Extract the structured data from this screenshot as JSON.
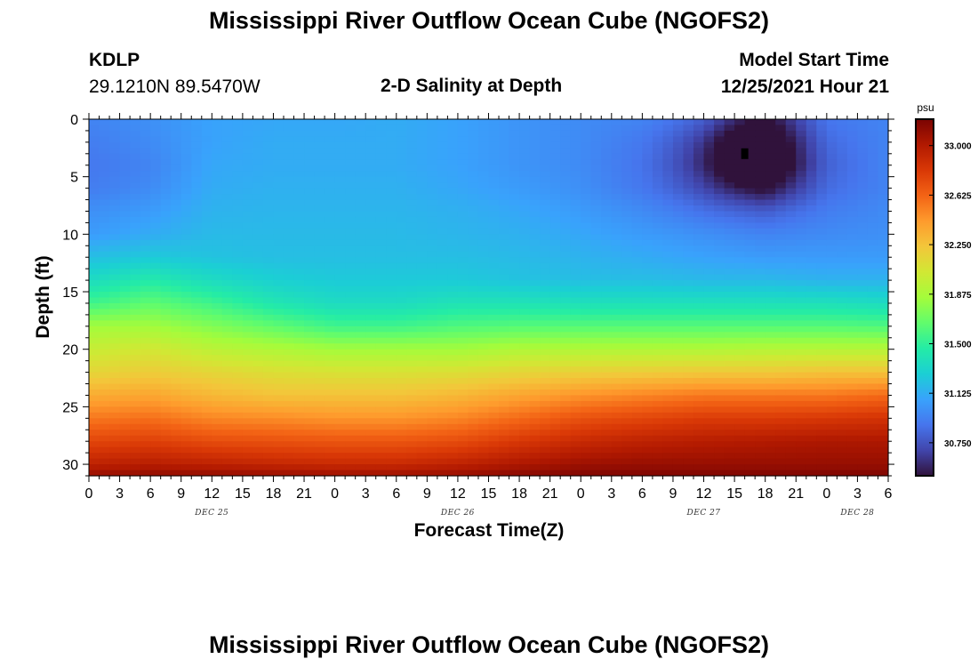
{
  "header": {
    "title": "Mississippi River Outflow Ocean Cube (NGOFS2)",
    "station_id": "KDLP",
    "coordinates": "29.1210N  89.5470W",
    "subtitle": "2-D Salinity at Depth",
    "model_start_label": "Model Start Time",
    "model_start_value": "12/25/2021 Hour 21"
  },
  "footer": {
    "title_repeat": "Mississippi River Outflow Ocean Cube (NGOFS2)"
  },
  "chart_data": {
    "type": "heatmap",
    "title": "2-D Salinity at Depth",
    "xlabel": "Forecast Time(Z)",
    "ylabel": "Depth (ft)",
    "xlim": [
      0,
      78
    ],
    "ylim": [
      0,
      31
    ],
    "y_inverted": true,
    "x_ticks": [
      "0",
      "3",
      "6",
      "9",
      "12",
      "15",
      "18",
      "21",
      "0",
      "3",
      "6",
      "9",
      "12",
      "15",
      "18",
      "21",
      "0",
      "3",
      "6",
      "9",
      "12",
      "15",
      "18",
      "21",
      "0",
      "3",
      "6"
    ],
    "day_labels": [
      {
        "label": "DEC 25",
        "hour": 12
      },
      {
        "label": "DEC 26",
        "hour": 36
      },
      {
        "label": "DEC 27",
        "hour": 60
      },
      {
        "label": "DEC 28",
        "hour": 75
      }
    ],
    "y_ticks": [
      0,
      5,
      10,
      15,
      20,
      25,
      30
    ],
    "colorbar": {
      "unit": "psu",
      "min": 30.5,
      "max": 33.2,
      "tick_values": [
        "33.000",
        "32.625",
        "32.250",
        "31.875",
        "31.500",
        "31.125",
        "30.750"
      ],
      "colors": [
        "#30123b",
        "#4145ab",
        "#4675ed",
        "#39a2fc",
        "#1bcfd4",
        "#24eca6",
        "#61fc6c",
        "#a4fc3b",
        "#d1e834",
        "#f3c63a",
        "#fe9b2d",
        "#f36315",
        "#d93806",
        "#b11901",
        "#7a0402"
      ]
    },
    "z_grid": {
      "description": "salinity (psu); rows = depth (ft) 0..31, cols = forecast hour 0..78",
      "depths": [
        0,
        2,
        4,
        6,
        8,
        10,
        12,
        14,
        16,
        18,
        20,
        22,
        24,
        26,
        28,
        30,
        31
      ],
      "hours": [
        0,
        6,
        12,
        18,
        24,
        30,
        36,
        42,
        48,
        54,
        60,
        66,
        72,
        78
      ],
      "values": [
        [
          30.95,
          31.0,
          31.08,
          31.1,
          31.1,
          31.12,
          31.08,
          31.02,
          30.98,
          30.95,
          30.85,
          30.55,
          30.9,
          30.95
        ],
        [
          30.92,
          30.98,
          31.08,
          31.12,
          31.12,
          31.12,
          31.08,
          31.02,
          30.98,
          30.9,
          30.75,
          30.45,
          30.85,
          30.95
        ],
        [
          30.9,
          30.95,
          31.1,
          31.12,
          31.12,
          31.12,
          31.08,
          31.02,
          30.98,
          30.88,
          30.7,
          30.4,
          30.82,
          30.95
        ],
        [
          30.92,
          30.98,
          31.12,
          31.14,
          31.14,
          31.14,
          31.1,
          31.05,
          31.0,
          30.9,
          30.75,
          30.55,
          30.85,
          30.95
        ],
        [
          31.0,
          31.05,
          31.15,
          31.16,
          31.16,
          31.16,
          31.14,
          31.1,
          31.05,
          30.98,
          30.88,
          30.8,
          30.92,
          30.98
        ],
        [
          31.05,
          31.12,
          31.18,
          31.18,
          31.18,
          31.18,
          31.16,
          31.14,
          31.1,
          31.05,
          31.0,
          30.95,
          30.98,
          31.0
        ],
        [
          31.2,
          31.25,
          31.22,
          31.2,
          31.2,
          31.2,
          31.2,
          31.18,
          31.15,
          31.12,
          31.08,
          31.05,
          31.05,
          31.05
        ],
        [
          31.35,
          31.45,
          31.35,
          31.28,
          31.25,
          31.25,
          31.25,
          31.22,
          31.2,
          31.2,
          31.18,
          31.18,
          31.15,
          31.15
        ],
        [
          31.55,
          31.65,
          31.55,
          31.42,
          31.35,
          31.35,
          31.4,
          31.4,
          31.38,
          31.38,
          31.38,
          31.38,
          31.38,
          31.35
        ],
        [
          31.85,
          31.85,
          31.75,
          31.65,
          31.55,
          31.55,
          31.6,
          31.62,
          31.62,
          31.62,
          31.62,
          31.62,
          31.62,
          31.6
        ],
        [
          32.0,
          32.05,
          31.95,
          31.9,
          31.85,
          31.85,
          31.85,
          31.9,
          31.9,
          31.9,
          31.9,
          31.92,
          31.92,
          31.92
        ],
        [
          32.15,
          32.2,
          32.15,
          32.1,
          32.08,
          32.08,
          32.1,
          32.15,
          32.18,
          32.2,
          32.22,
          32.22,
          32.25,
          32.25
        ],
        [
          32.35,
          32.38,
          32.3,
          32.25,
          32.25,
          32.25,
          32.3,
          32.38,
          32.45,
          32.5,
          32.55,
          32.55,
          32.55,
          32.6
        ],
        [
          32.55,
          32.58,
          32.5,
          32.48,
          32.45,
          32.45,
          32.5,
          32.6,
          32.7,
          32.75,
          32.8,
          32.8,
          32.82,
          32.85
        ],
        [
          32.75,
          32.78,
          32.72,
          32.7,
          32.68,
          32.68,
          32.72,
          32.82,
          32.9,
          32.95,
          32.98,
          33.0,
          33.02,
          33.02
        ],
        [
          32.95,
          32.98,
          32.95,
          32.92,
          32.9,
          32.9,
          32.95,
          33.02,
          33.08,
          33.1,
          33.1,
          33.1,
          33.1,
          33.1
        ],
        [
          33.1,
          33.12,
          33.12,
          33.1,
          33.08,
          33.08,
          33.1,
          33.15,
          33.18,
          33.18,
          33.18,
          33.18,
          33.18,
          33.18
        ]
      ]
    },
    "marker": {
      "hour": 64,
      "depth": 3,
      "color": "#000000"
    }
  }
}
